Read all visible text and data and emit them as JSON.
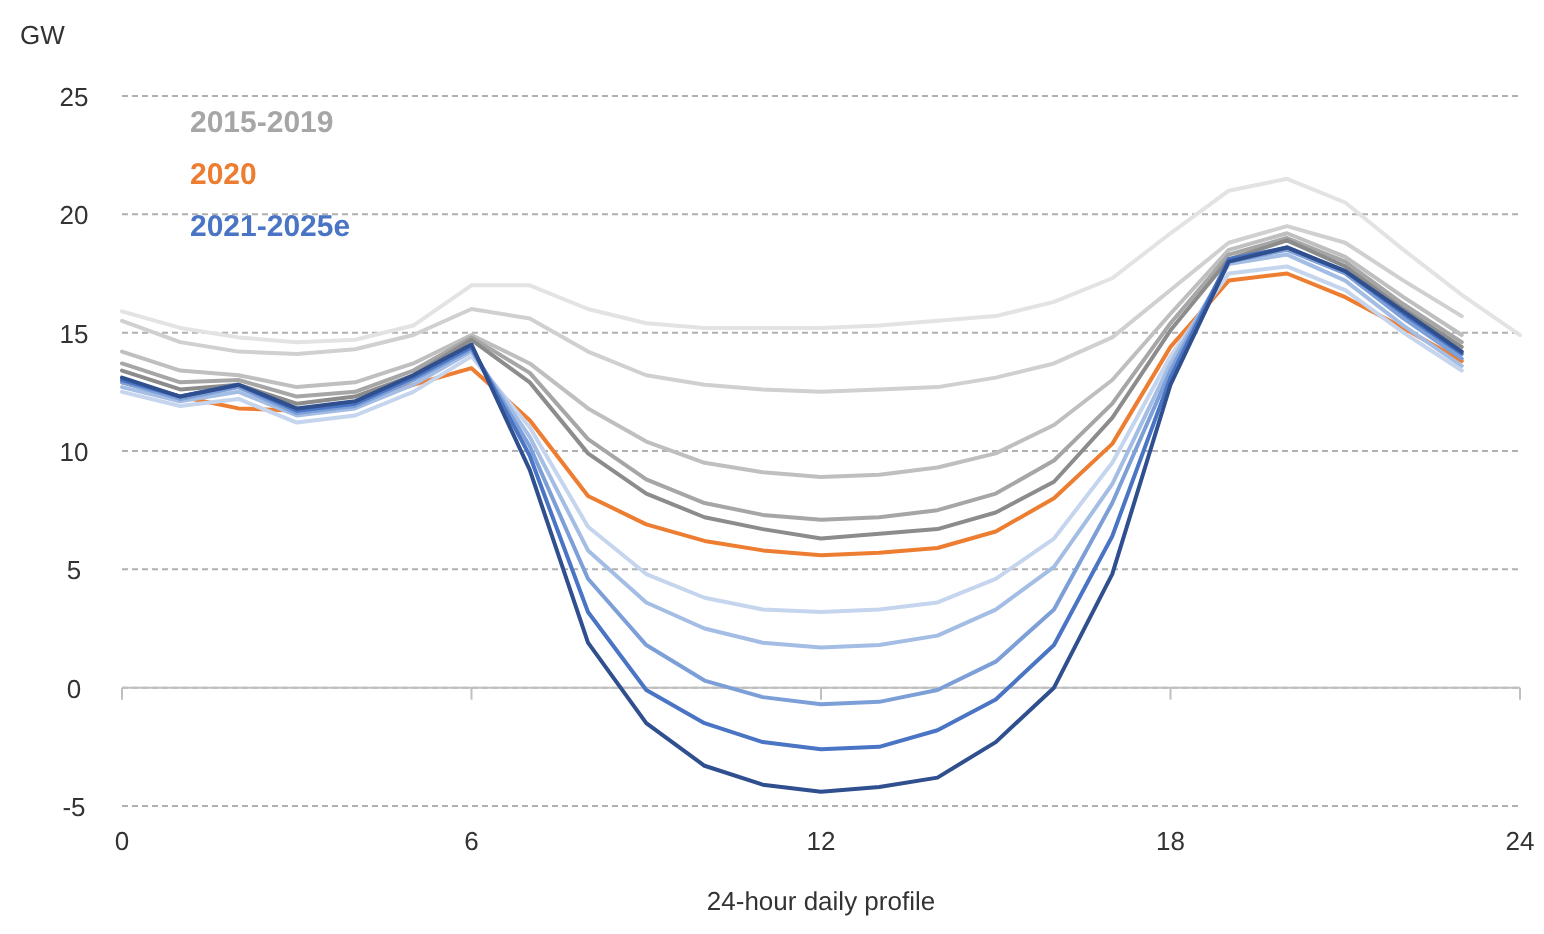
{
  "chart_data": {
    "type": "line",
    "ylabel": "GW",
    "xlabel": "24-hour daily profile",
    "x": [
      0,
      1,
      2,
      3,
      4,
      5,
      6,
      7,
      8,
      9,
      10,
      11,
      12,
      13,
      14,
      15,
      16,
      17,
      18,
      19,
      20,
      21,
      22,
      23,
      24
    ],
    "xlim": [
      0,
      24
    ],
    "xticks": [
      0,
      6,
      12,
      18,
      24
    ],
    "ylim": [
      -5,
      25
    ],
    "yticks": [
      -5,
      0,
      5,
      10,
      15,
      20,
      25
    ],
    "grid": "y",
    "line_style": "solid",
    "marker": "none",
    "annotations": [
      "2015-2019",
      "2020",
      "2021-2025e"
    ],
    "series": [
      {
        "color": "#e3e3e3",
        "values": [
          15.9,
          15.2,
          14.8,
          14.6,
          14.7,
          15.3,
          17.0,
          17.0,
          16.0,
          15.4,
          15.2,
          15.2,
          15.2,
          15.3,
          15.5,
          15.7,
          16.3,
          17.3,
          19.2,
          21.0,
          21.5,
          20.5,
          18.5,
          16.6,
          14.9
        ]
      },
      {
        "color": "#d0d0d0",
        "values": [
          15.5,
          14.6,
          14.2,
          14.1,
          14.3,
          14.9,
          16.0,
          15.6,
          14.2,
          13.2,
          12.8,
          12.6,
          12.5,
          12.6,
          12.7,
          13.1,
          13.7,
          14.8,
          16.8,
          18.8,
          19.5,
          18.8,
          17.2,
          15.7,
          null
        ]
      },
      {
        "color": "#bfbfbf",
        "values": [
          14.2,
          13.4,
          13.2,
          12.7,
          12.9,
          13.7,
          14.9,
          13.7,
          11.8,
          10.4,
          9.5,
          9.1,
          8.9,
          9.0,
          9.3,
          9.9,
          11.1,
          13.0,
          15.8,
          18.5,
          19.2,
          18.2,
          16.5,
          14.9,
          null
        ]
      },
      {
        "color": "#a6a6a6",
        "values": [
          13.7,
          12.9,
          13.0,
          12.3,
          12.5,
          13.4,
          14.8,
          13.3,
          10.5,
          8.8,
          7.8,
          7.3,
          7.1,
          7.2,
          7.5,
          8.2,
          9.6,
          12.0,
          15.4,
          18.3,
          19.0,
          18.0,
          16.2,
          14.6,
          null
        ]
      },
      {
        "color": "#8c8c8c",
        "values": [
          13.4,
          12.6,
          12.8,
          12.0,
          12.3,
          13.2,
          14.7,
          12.9,
          9.9,
          8.2,
          7.2,
          6.7,
          6.3,
          6.5,
          6.7,
          7.4,
          8.7,
          11.4,
          15.1,
          18.1,
          18.9,
          17.8,
          16.0,
          14.4,
          null
        ]
      },
      {
        "color": "#ed7d31",
        "values": [
          12.9,
          12.3,
          11.8,
          11.7,
          12.0,
          12.8,
          13.5,
          11.3,
          8.1,
          6.9,
          6.2,
          5.8,
          5.6,
          5.7,
          5.9,
          6.6,
          8.0,
          10.3,
          14.4,
          17.2,
          17.5,
          16.5,
          15.2,
          13.8,
          null
        ]
      },
      {
        "color": "#c5d5ee",
        "values": [
          12.5,
          11.9,
          12.2,
          11.2,
          11.5,
          12.5,
          14.0,
          11.0,
          6.8,
          4.8,
          3.8,
          3.3,
          3.2,
          3.3,
          3.6,
          4.6,
          6.3,
          9.5,
          14.0,
          17.5,
          17.8,
          16.8,
          15.0,
          13.4,
          null
        ]
      },
      {
        "color": "#a4bde4",
        "values": [
          12.7,
          12.1,
          12.5,
          11.5,
          11.8,
          12.8,
          14.2,
          10.6,
          5.8,
          3.6,
          2.5,
          1.9,
          1.7,
          1.8,
          2.2,
          3.3,
          5.1,
          8.6,
          13.7,
          17.9,
          18.3,
          17.2,
          15.3,
          13.6,
          null
        ]
      },
      {
        "color": "#7d9fd8",
        "values": [
          12.9,
          12.2,
          12.7,
          11.6,
          11.9,
          13.0,
          14.3,
          10.2,
          4.6,
          1.8,
          0.3,
          -0.4,
          -0.7,
          -0.6,
          -0.1,
          1.1,
          3.3,
          7.8,
          13.4,
          18.0,
          18.5,
          17.5,
          15.6,
          13.9,
          null
        ]
      },
      {
        "color": "#4a74c4",
        "values": [
          13.0,
          12.3,
          12.8,
          11.7,
          12.0,
          13.1,
          14.4,
          9.8,
          3.2,
          -0.1,
          -1.5,
          -2.3,
          -2.6,
          -2.5,
          -1.8,
          -0.5,
          1.8,
          6.4,
          13.1,
          18.1,
          18.6,
          17.6,
          15.8,
          14.1,
          null
        ]
      },
      {
        "color": "#2f4f8f",
        "values": [
          13.1,
          12.3,
          12.8,
          11.8,
          12.1,
          13.2,
          14.5,
          9.2,
          1.9,
          -1.5,
          -3.3,
          -4.1,
          -4.4,
          -4.2,
          -3.8,
          -2.3,
          0.0,
          4.8,
          12.8,
          18.0,
          18.6,
          17.6,
          15.9,
          14.2,
          null
        ]
      }
    ]
  }
}
